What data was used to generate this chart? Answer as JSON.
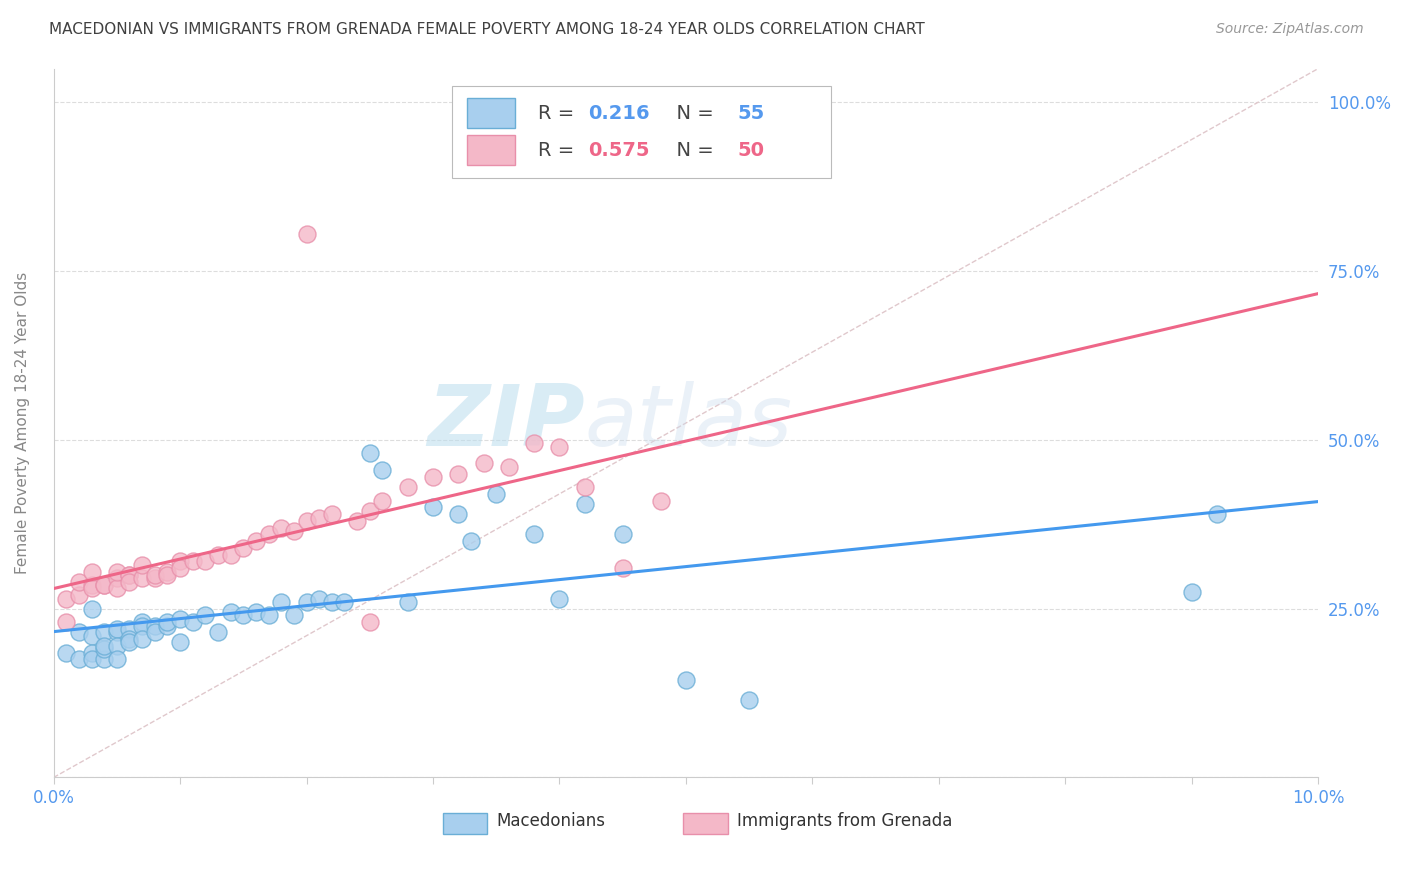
{
  "title": "MACEDONIAN VS IMMIGRANTS FROM GRENADA FEMALE POVERTY AMONG 18-24 YEAR OLDS CORRELATION CHART",
  "source": "Source: ZipAtlas.com",
  "ylabel": "Female Poverty Among 18-24 Year Olds",
  "blue_R": 0.216,
  "blue_N": 55,
  "pink_R": 0.575,
  "pink_N": 50,
  "xlim": [
    0.0,
    0.1
  ],
  "ylim": [
    0.0,
    1.05
  ],
  "background_color": "#ffffff",
  "blue_scatter_color": "#A8CFEE",
  "blue_edge_color": "#6AAED6",
  "pink_scatter_color": "#F4B8C8",
  "pink_edge_color": "#E88FAA",
  "blue_line_color": "#4499EE",
  "pink_line_color": "#EE6688",
  "diagonal_color": "#C8C8C8",
  "title_color": "#404040",
  "axis_label_color": "#5599EE",
  "grid_color": "#DDDDDD",
  "watermark_color": "#BBDDEE",
  "blue_scatter_x": [
    0.001,
    0.002,
    0.002,
    0.003,
    0.003,
    0.003,
    0.003,
    0.004,
    0.004,
    0.004,
    0.004,
    0.005,
    0.005,
    0.005,
    0.005,
    0.006,
    0.006,
    0.006,
    0.007,
    0.007,
    0.007,
    0.008,
    0.008,
    0.009,
    0.009,
    0.01,
    0.01,
    0.011,
    0.012,
    0.013,
    0.014,
    0.015,
    0.016,
    0.017,
    0.018,
    0.019,
    0.02,
    0.021,
    0.022,
    0.023,
    0.025,
    0.026,
    0.028,
    0.03,
    0.032,
    0.033,
    0.035,
    0.038,
    0.04,
    0.042,
    0.045,
    0.05,
    0.055,
    0.09,
    0.092
  ],
  "blue_scatter_y": [
    0.185,
    0.175,
    0.215,
    0.21,
    0.25,
    0.185,
    0.175,
    0.215,
    0.175,
    0.19,
    0.195,
    0.215,
    0.22,
    0.195,
    0.175,
    0.22,
    0.205,
    0.2,
    0.23,
    0.225,
    0.205,
    0.225,
    0.215,
    0.225,
    0.23,
    0.235,
    0.2,
    0.23,
    0.24,
    0.215,
    0.245,
    0.24,
    0.245,
    0.24,
    0.26,
    0.24,
    0.26,
    0.265,
    0.26,
    0.26,
    0.48,
    0.455,
    0.26,
    0.4,
    0.39,
    0.35,
    0.42,
    0.36,
    0.265,
    0.405,
    0.36,
    0.145,
    0.115,
    0.275,
    0.39
  ],
  "pink_scatter_x": [
    0.001,
    0.001,
    0.002,
    0.002,
    0.003,
    0.003,
    0.003,
    0.004,
    0.004,
    0.005,
    0.005,
    0.005,
    0.006,
    0.006,
    0.006,
    0.007,
    0.007,
    0.008,
    0.008,
    0.009,
    0.009,
    0.01,
    0.01,
    0.011,
    0.012,
    0.013,
    0.014,
    0.015,
    0.016,
    0.017,
    0.018,
    0.019,
    0.02,
    0.021,
    0.022,
    0.024,
    0.025,
    0.026,
    0.028,
    0.03,
    0.032,
    0.034,
    0.036,
    0.038,
    0.04,
    0.042,
    0.045,
    0.048,
    0.02,
    0.025
  ],
  "pink_scatter_y": [
    0.23,
    0.265,
    0.27,
    0.29,
    0.285,
    0.28,
    0.305,
    0.285,
    0.285,
    0.295,
    0.28,
    0.305,
    0.3,
    0.3,
    0.29,
    0.295,
    0.315,
    0.295,
    0.3,
    0.305,
    0.3,
    0.32,
    0.31,
    0.32,
    0.32,
    0.33,
    0.33,
    0.34,
    0.35,
    0.36,
    0.37,
    0.365,
    0.38,
    0.385,
    0.39,
    0.38,
    0.395,
    0.41,
    0.43,
    0.445,
    0.45,
    0.465,
    0.46,
    0.495,
    0.49,
    0.43,
    0.31,
    0.41,
    0.805,
    0.23
  ],
  "legend_label_blue": "Macedonians",
  "legend_label_pink": "Immigrants from Grenada",
  "watermark_zip": "ZIP",
  "watermark_atlas": "atlas"
}
